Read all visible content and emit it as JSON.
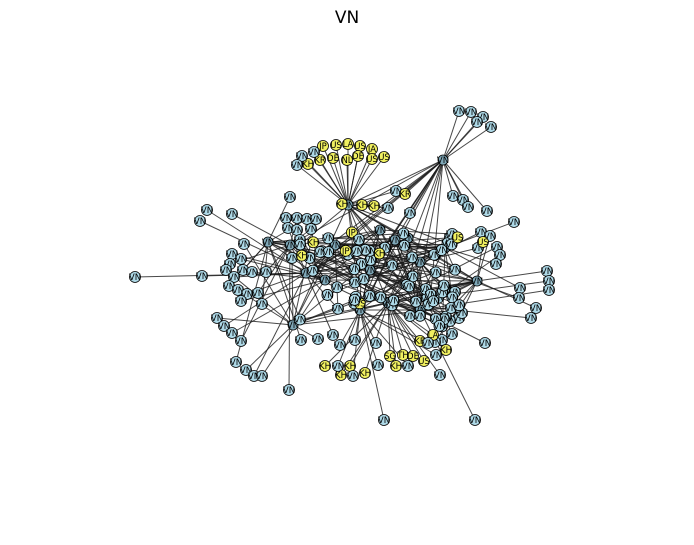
{
  "title": "VN",
  "colors": {
    "vn_node": "#add8e6",
    "foreign_node": "#f0f060",
    "edge": "#1a1a1a",
    "node_stroke": "#000000"
  },
  "node_groups": [
    {
      "label": "VN",
      "color_key": "vn_node"
    },
    {
      "label": "KH",
      "color_key": "foreign_node"
    },
    {
      "label": "US",
      "color_key": "foreign_node"
    },
    {
      "label": "JP",
      "color_key": "foreign_node"
    },
    {
      "label": "DE",
      "color_key": "foreign_node"
    },
    {
      "label": "SG",
      "color_key": "foreign_node"
    },
    {
      "label": "TH",
      "color_key": "foreign_node"
    },
    {
      "label": "KR",
      "color_key": "foreign_node"
    },
    {
      "label": "LA",
      "color_key": "foreign_node"
    },
    {
      "label": "FR",
      "color_key": "foreign_node"
    },
    {
      "label": "AU",
      "color_key": "foreign_node"
    }
  ]
}
